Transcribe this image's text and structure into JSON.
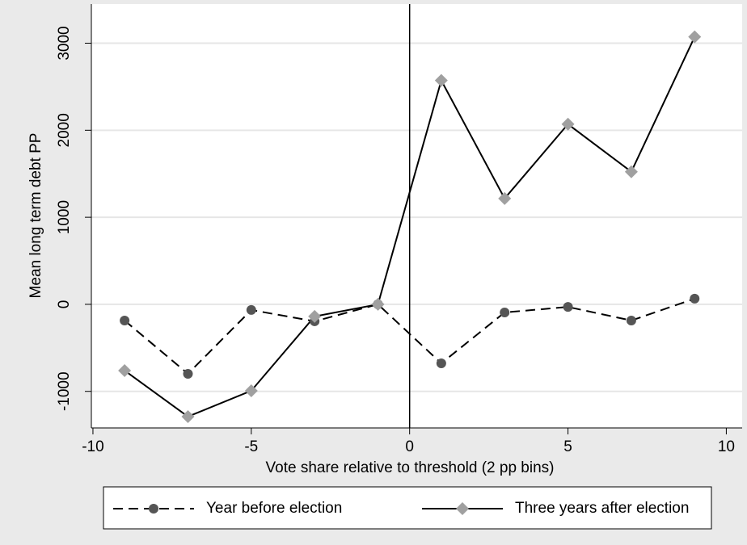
{
  "chart_data": {
    "type": "line",
    "x_label": "Vote share relative to threshold (2 pp bins)",
    "y_label": "Mean long term debt PP",
    "x": [
      -9,
      -7,
      -5,
      -3,
      -1,
      1,
      3,
      5,
      7,
      9
    ],
    "series": [
      {
        "name": "Year before election",
        "color": "#555555",
        "line_color": "#000000",
        "dash": true,
        "marker": "circle",
        "values": [
          -186,
          -798,
          -65,
          -195,
          0,
          -678,
          -93,
          -30,
          -186,
          65
        ]
      },
      {
        "name": "Three years after election",
        "color": "#a0a0a0",
        "line_color": "#000000",
        "dash": false,
        "marker": "diamond",
        "values": [
          -761,
          -1290,
          -993,
          -139,
          0,
          2572,
          1216,
          2070,
          1523,
          3073
        ]
      }
    ],
    "xlim": [
      -10.05,
      10.5
    ],
    "xticks": [
      -10,
      -5,
      0,
      5,
      10
    ],
    "ylim": [
      -1420,
      3450
    ],
    "yticks": [
      -1000,
      0,
      1000,
      2000,
      3000
    ],
    "vline": 0,
    "grid": true,
    "legend": "bottom"
  }
}
